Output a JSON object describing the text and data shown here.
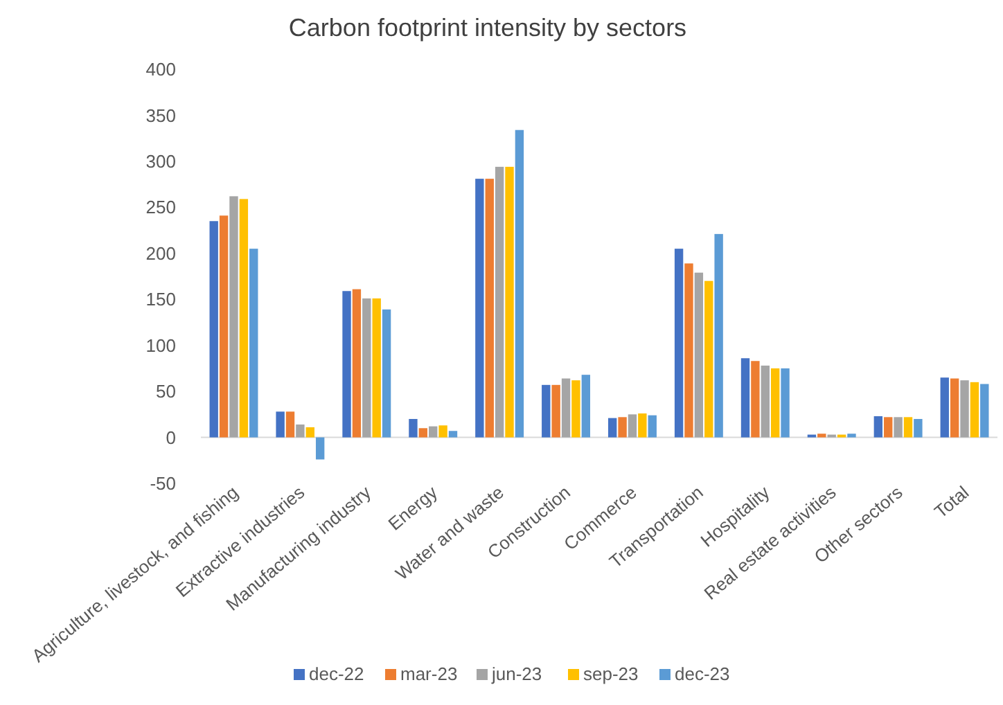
{
  "chart_data": {
    "type": "bar",
    "title": "Carbon footprint intensity by sectors",
    "categories": [
      "Agriculture, livestock, and fishing",
      "Extractive industries",
      "Manufacturing industry",
      "Energy",
      "Water and waste",
      "Construction",
      "Commerce",
      "Transportation",
      "Hospitality",
      "Real estate activities",
      "Other sectors",
      "Total"
    ],
    "series": [
      {
        "name": "dec-22",
        "color": "#4472c4",
        "values": [
          235,
          28,
          159,
          20,
          281,
          57,
          21,
          205,
          86,
          3,
          23,
          65
        ]
      },
      {
        "name": "mar-23",
        "color": "#ed7d31",
        "values": [
          241,
          28,
          161,
          10,
          281,
          57,
          22,
          189,
          83,
          4,
          22,
          64
        ]
      },
      {
        "name": "jun-23",
        "color": "#a5a5a5",
        "values": [
          262,
          14,
          151,
          12,
          294,
          64,
          25,
          179,
          78,
          3,
          22,
          62
        ]
      },
      {
        "name": "sep-23",
        "color": "#ffc000",
        "values": [
          259,
          11,
          151,
          13,
          294,
          62,
          26,
          170,
          75,
          3,
          22,
          60
        ]
      },
      {
        "name": "dec-23",
        "color": "#5b9bd5",
        "values": [
          205,
          -24,
          139,
          7,
          334,
          68,
          24,
          221,
          75,
          4,
          20,
          58
        ]
      }
    ],
    "ylim": [
      -50,
      400
    ],
    "yticks": [
      -50,
      0,
      50,
      100,
      150,
      200,
      250,
      300,
      350,
      400
    ],
    "grid": false,
    "legend": "bottom"
  }
}
